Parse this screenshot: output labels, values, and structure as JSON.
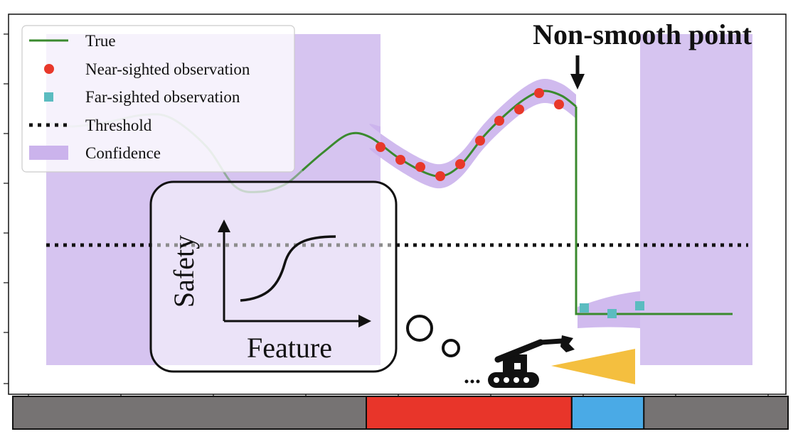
{
  "annotation": {
    "label": "Non-smooth point"
  },
  "legend": {
    "items": [
      {
        "key": "true",
        "label": "True",
        "color": "#3a8a2e"
      },
      {
        "key": "near",
        "label": "Near-sighted observation",
        "color": "#e8382a"
      },
      {
        "key": "far",
        "label": "Far-sighted observation",
        "color": "#5bbcc0"
      },
      {
        "key": "threshold",
        "label": "Threshold",
        "color": "#111111"
      },
      {
        "key": "confidence",
        "label": "Confidence",
        "color": "#cbb3ec"
      }
    ]
  },
  "inset": {
    "ylabel": "Safety",
    "xlabel": "Feature"
  },
  "colors": {
    "true_curve": "#3a8a2e",
    "near_obs": "#e8382a",
    "far_obs": "#5bbcc0",
    "confidence": "#cbb3ec",
    "threshold": "#111111",
    "sensor_cone": "#f4bf3f",
    "bar_unknown": "#767373",
    "bar_near": "#e8352a",
    "bar_far": "#4aaae6"
  },
  "icons": {
    "robot": "excavator-robot-icon",
    "cone": "sensor-cone-icon",
    "thought": "thought-bubble-icon"
  },
  "region_bar": {
    "segments": [
      {
        "name": "unknown-left",
        "color": "#767373",
        "from": 0.0,
        "to": 0.456
      },
      {
        "name": "near-sighted",
        "color": "#e8352a",
        "from": 0.456,
        "to": 0.721
      },
      {
        "name": "far-sighted",
        "color": "#4aaae6",
        "from": 0.721,
        "to": 0.814
      },
      {
        "name": "unknown-right",
        "color": "#767373",
        "from": 0.814,
        "to": 1.0
      }
    ]
  }
}
